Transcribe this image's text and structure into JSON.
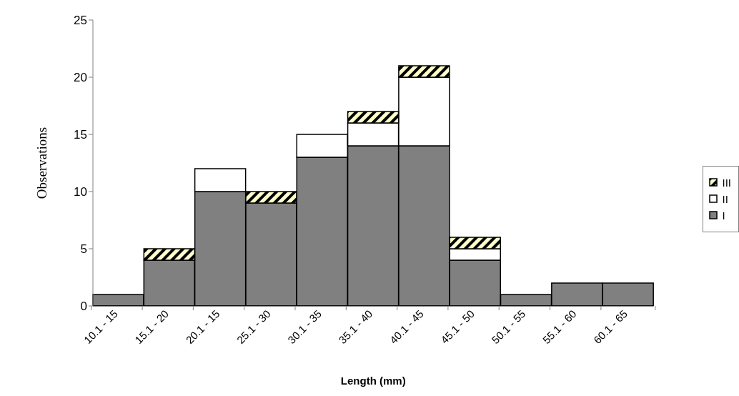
{
  "chart_data": {
    "type": "bar",
    "stacked": true,
    "xlabel": "Length (mm)",
    "ylabel": "Observations",
    "categories": [
      "10.1 - 15",
      "15.1 - 20",
      "20.1 - 15",
      "25.1 - 30",
      "30.1 - 35",
      "35.1 - 40",
      "40.1 - 45",
      "45.1 - 50",
      "50.1 - 55",
      "55.1 - 60",
      "60.1 - 65"
    ],
    "series": [
      {
        "name": "I",
        "color": "#808080",
        "values": [
          1,
          4,
          10,
          9,
          13,
          14,
          14,
          4,
          1,
          2,
          2
        ]
      },
      {
        "name": "II",
        "color": "#ffffff",
        "values": [
          0,
          0,
          2,
          0,
          2,
          2,
          6,
          1,
          0,
          0,
          0
        ]
      },
      {
        "name": "III",
        "color": "#ffffcc",
        "values": [
          0,
          1,
          0,
          1,
          0,
          1,
          1,
          1,
          0,
          0,
          0
        ]
      }
    ],
    "ylim": [
      0,
      25
    ],
    "yticks": [
      0,
      5,
      10,
      15,
      20,
      25
    ],
    "grid": false,
    "legend": "right"
  }
}
